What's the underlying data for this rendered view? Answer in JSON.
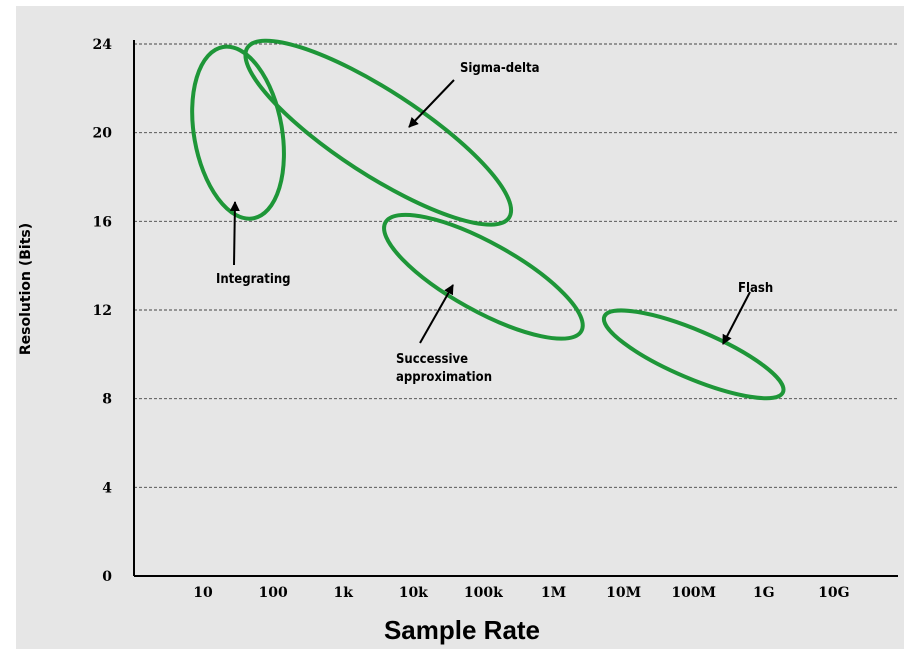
{
  "chart_data": {
    "type": "scatter",
    "title": "",
    "xlabel": "Sample Rate",
    "ylabel": "Resolution (Bits)",
    "xscale": "log",
    "x_ticks": [
      "10",
      "100",
      "1k",
      "10k",
      "100k",
      "1M",
      "10M",
      "100M",
      "1G",
      "10G"
    ],
    "y_ticks": [
      0,
      4,
      8,
      12,
      16,
      20,
      24
    ],
    "ylim": [
      0,
      24
    ],
    "grid": "horizontal dashed",
    "series_color": "#1e9638",
    "regions": [
      {
        "name": "Integrating",
        "label_lines": [
          "Integrating"
        ],
        "x_range": [
          "10",
          "100"
        ],
        "y_range": [
          16,
          24
        ]
      },
      {
        "name": "Sigma-delta",
        "label_lines": [
          "Sigma-delta"
        ],
        "x_range": [
          "100",
          "100k"
        ],
        "y_range": [
          16,
          24
        ]
      },
      {
        "name": "Successive approximation",
        "label_lines": [
          "Successive",
          "approximation"
        ],
        "x_range": [
          "10k",
          "1M"
        ],
        "y_range": [
          11,
          16
        ]
      },
      {
        "name": "Flash",
        "label_lines": [
          "Flash"
        ],
        "x_range": [
          "10M",
          "1G"
        ],
        "y_range": [
          8,
          12
        ]
      }
    ]
  }
}
